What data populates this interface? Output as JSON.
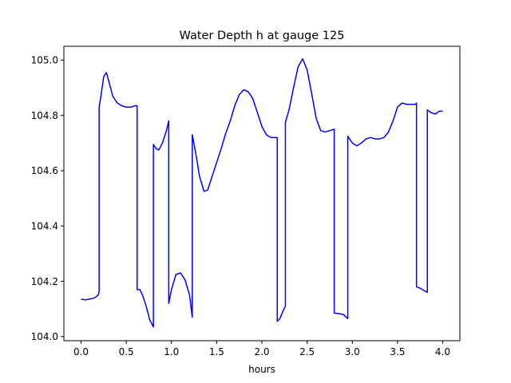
{
  "chart_data": {
    "type": "line",
    "title": "Water Depth h at gauge 125",
    "xlabel": "hours",
    "ylabel": "",
    "xlim": [
      -0.19,
      4.19
    ],
    "ylim": [
      103.985,
      105.05
    ],
    "grid": false,
    "legend": "none",
    "x_ticks": [
      0.0,
      0.5,
      1.0,
      1.5,
      2.0,
      2.5,
      3.0,
      3.5,
      4.0
    ],
    "x_tick_labels": [
      "0.0",
      "0.5",
      "1.0",
      "1.5",
      "2.0",
      "2.5",
      "3.0",
      "3.5",
      "4.0"
    ],
    "y_ticks": [
      104.0,
      104.2,
      104.4,
      104.6,
      104.8,
      105.0
    ],
    "y_tick_labels": [
      "104.0",
      "104.2",
      "104.4",
      "104.6",
      "104.8",
      "105.0"
    ],
    "series": [
      {
        "color": "#0000ff",
        "x": [
          0.0,
          0.05,
          0.1,
          0.15,
          0.19,
          0.2,
          0.2,
          0.22,
          0.25,
          0.28,
          0.31,
          0.35,
          0.4,
          0.45,
          0.5,
          0.55,
          0.6,
          0.62,
          0.62,
          0.65,
          0.68,
          0.72,
          0.76,
          0.8,
          0.8,
          0.83,
          0.86,
          0.9,
          0.94,
          0.97,
          0.97,
          1.0,
          1.05,
          1.1,
          1.15,
          1.2,
          1.23,
          1.23,
          1.27,
          1.31,
          1.36,
          1.4,
          1.45,
          1.5,
          1.55,
          1.6,
          1.65,
          1.7,
          1.75,
          1.8,
          1.85,
          1.9,
          1.95,
          2.0,
          2.05,
          2.1,
          2.15,
          2.17,
          2.17,
          2.2,
          2.23,
          2.26,
          2.26,
          2.3,
          2.35,
          2.4,
          2.45,
          2.5,
          2.55,
          2.6,
          2.65,
          2.7,
          2.75,
          2.8,
          2.8,
          2.85,
          2.9,
          2.95,
          2.95,
          3.0,
          3.05,
          3.1,
          3.15,
          3.2,
          3.25,
          3.3,
          3.35,
          3.4,
          3.45,
          3.5,
          3.55,
          3.6,
          3.65,
          3.7,
          3.71,
          3.71,
          3.75,
          3.8,
          3.83,
          3.83,
          3.87,
          3.92,
          3.96,
          4.0
        ],
        "y": [
          104.135,
          104.133,
          104.136,
          104.14,
          104.15,
          104.165,
          104.83,
          104.87,
          104.94,
          104.955,
          104.92,
          104.87,
          104.845,
          104.835,
          104.83,
          104.83,
          104.835,
          104.835,
          104.17,
          104.17,
          104.15,
          104.11,
          104.06,
          104.035,
          104.695,
          104.68,
          104.675,
          104.7,
          104.74,
          104.78,
          104.12,
          104.17,
          104.225,
          104.23,
          104.205,
          104.15,
          104.07,
          104.73,
          104.66,
          104.58,
          104.525,
          104.53,
          104.58,
          104.63,
          104.68,
          104.735,
          104.78,
          104.835,
          104.875,
          104.893,
          104.885,
          104.86,
          104.81,
          104.76,
          104.73,
          104.72,
          104.72,
          104.72,
          104.055,
          104.065,
          104.09,
          104.11,
          104.775,
          104.82,
          104.9,
          104.975,
          105.005,
          104.965,
          104.88,
          104.79,
          104.745,
          104.74,
          104.745,
          104.75,
          104.085,
          104.083,
          104.08,
          104.065,
          104.725,
          104.7,
          104.69,
          104.7,
          104.715,
          104.72,
          104.715,
          104.715,
          104.72,
          104.74,
          104.78,
          104.83,
          104.845,
          104.84,
          104.84,
          104.84,
          104.845,
          104.18,
          104.175,
          104.165,
          104.16,
          104.82,
          104.81,
          104.805,
          104.815,
          104.815
        ]
      }
    ]
  }
}
